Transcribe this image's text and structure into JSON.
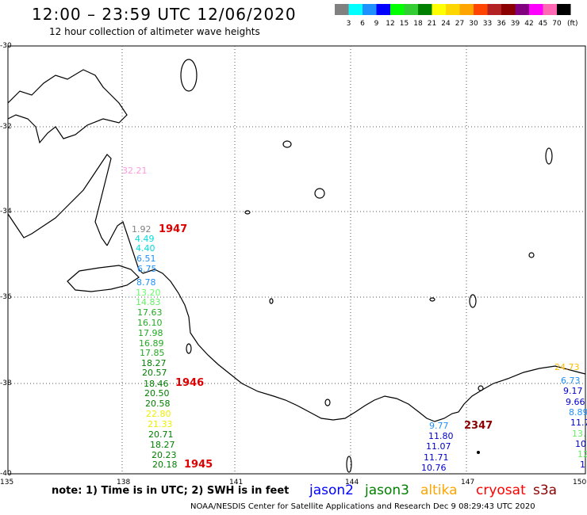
{
  "title": "12:00  –  23:59 UTC 12/06/2020",
  "subtitle": "12 hour collection of altimeter wave heights",
  "colorbar": {
    "unit": "(ft)",
    "colors": [
      "#808080",
      "#00ffff",
      "#1e90ff",
      "#0000ff",
      "#00ff00",
      "#32cd32",
      "#008000",
      "#ffff00",
      "#ffd700",
      "#ffa500",
      "#ff4500",
      "#b22222",
      "#8b0000",
      "#800080",
      "#ff00ff",
      "#ff69b4",
      "#000000"
    ],
    "labels": [
      "3",
      "6",
      "9",
      "12",
      "15",
      "18",
      "21",
      "24",
      "27",
      "30",
      "33",
      "36",
      "39",
      "42",
      "45",
      "70"
    ]
  },
  "latitudes": [
    "-30",
    "-32",
    "-34",
    "-36",
    "-38",
    "-40"
  ],
  "longitudes": [
    "135",
    "138",
    "141",
    "144",
    "147",
    "150"
  ],
  "observations": [
    {
      "v": "32.21",
      "c": "#ff99dd"
    },
    {
      "v": "1.92",
      "c": "#808080"
    },
    {
      "v": "4.49",
      "c": "#00dddd"
    },
    {
      "v": "4.40",
      "c": "#00dddd"
    },
    {
      "v": "6.51",
      "c": "#1e90ff"
    },
    {
      "v": "6.75",
      "c": "#1e90ff"
    },
    {
      "v": "8.78",
      "c": "#1e90ff"
    },
    {
      "v": "13.20",
      "c": "#66ff66"
    },
    {
      "v": "14.83",
      "c": "#66ee66"
    },
    {
      "v": "17.63",
      "c": "#22aa22"
    },
    {
      "v": "16.10",
      "c": "#22aa22"
    },
    {
      "v": "17.98",
      "c": "#22aa22"
    },
    {
      "v": "16.89",
      "c": "#22aa22"
    },
    {
      "v": "17.85",
      "c": "#22aa22"
    },
    {
      "v": "18.27",
      "c": "#008000"
    },
    {
      "v": "20.57",
      "c": "#008000"
    },
    {
      "v": "18.46",
      "c": "#008000"
    },
    {
      "v": "20.50",
      "c": "#008000"
    },
    {
      "v": "20.58",
      "c": "#008000"
    },
    {
      "v": "22.80",
      "c": "#eeee00"
    },
    {
      "v": "21.33",
      "c": "#eeee00"
    },
    {
      "v": "20.71",
      "c": "#008000"
    },
    {
      "v": "18.27",
      "c": "#008000"
    },
    {
      "v": "20.23",
      "c": "#008000"
    },
    {
      "v": "20.18",
      "c": "#008000"
    },
    {
      "v": "24.73",
      "c": "#ffbb00"
    },
    {
      "v": "6.73",
      "c": "#1e90ff"
    },
    {
      "v": "9.17",
      "c": "#0000cc"
    },
    {
      "v": "9.66",
      "c": "#0000cc"
    },
    {
      "v": "8.89",
      "c": "#1e90ff"
    },
    {
      "v": "11.7",
      "c": "#0000cc"
    },
    {
      "v": "13.",
      "c": "#66ee66"
    },
    {
      "v": "10.",
      "c": "#0000cc"
    },
    {
      "v": "12",
      "c": "#66ee66"
    },
    {
      "v": "1",
      "c": "#0000cc"
    },
    {
      "v": "9.77",
      "c": "#1e90ff"
    },
    {
      "v": "11.80",
      "c": "#0000cc"
    },
    {
      "v": "11.07",
      "c": "#0000cc"
    },
    {
      "v": "11.71",
      "c": "#0000cc"
    },
    {
      "v": "10.76",
      "c": "#0000cc"
    }
  ],
  "passes": [
    {
      "t": "1947",
      "c": "#dd0000"
    },
    {
      "t": "1946",
      "c": "#dd0000"
    },
    {
      "t": "1945",
      "c": "#dd0000"
    },
    {
      "t": "2347",
      "c": "#8b0000"
    }
  ],
  "note": "note:  1) Time is in UTC;  2) SWH is in feet",
  "satellites": [
    {
      "name": "jason2",
      "color": "#0000ff"
    },
    {
      "name": "jason3",
      "color": "#008000"
    },
    {
      "name": "altika",
      "color": "#ffa500"
    },
    {
      "name": "cryosat",
      "color": "#ff0000"
    },
    {
      "name": "s3a",
      "color": "#8b0000"
    }
  ],
  "footer": "NOAA/NESDIS Center for Satellite Applications and Research     Dec  9 08:29:43 UTC 2020"
}
